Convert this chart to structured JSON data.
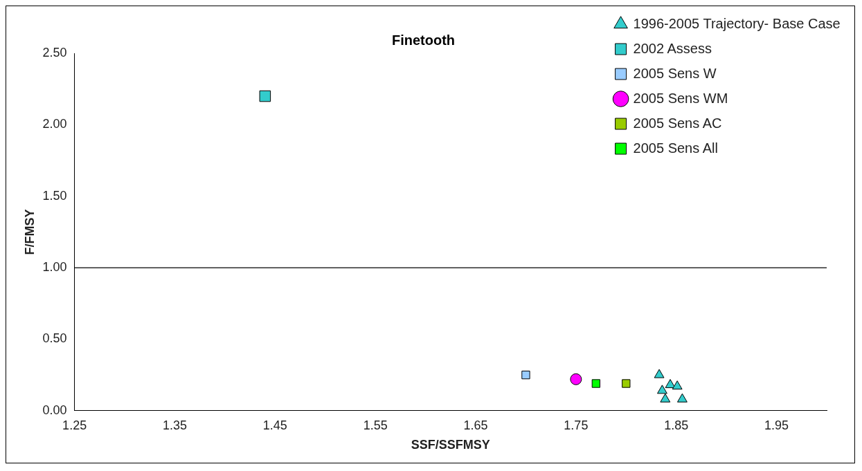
{
  "chart_data": {
    "type": "scatter",
    "title": "Finetooth",
    "xlabel": "SSF/SSFMSY",
    "ylabel": "F/FMSY",
    "xlim": [
      1.25,
      2.0
    ],
    "xticks": [
      1.25,
      1.35,
      1.45,
      1.55,
      1.65,
      1.75,
      1.85,
      1.95
    ],
    "ylim": [
      0,
      2.5
    ],
    "yticks": [
      {
        "value": 0,
        "label": "0.00"
      },
      {
        "value": 0.5,
        "label": "0.50"
      },
      {
        "value": 1,
        "label": "1.00"
      },
      {
        "value": 1.5,
        "label": "1.50"
      },
      {
        "value": 2,
        "label": "2.00"
      },
      {
        "value": 2.5,
        "label": "2.50"
      }
    ],
    "grid": false,
    "legend": "top right",
    "ref_lines": [
      {
        "axis": "y",
        "value": 1,
        "color": "#000000"
      }
    ],
    "series": [
      {
        "name": "1996-2005 Trajectory- Base Case",
        "color": "#33cccc",
        "marker": "triangle",
        "x": [
          1.833,
          1.836,
          1.839,
          1.844,
          1.848,
          1.851,
          1.856
        ],
        "values": [
          0.25,
          0.14,
          0.08,
          0.18,
          null,
          0.17,
          0.08
        ]
      },
      {
        "name": "2002 Assess",
        "color": "#33cccc",
        "marker": "square",
        "x": [
          1.44
        ],
        "values": [
          2.2
        ]
      },
      {
        "name": "2005 Sens W",
        "color": "#99ccff",
        "marker": "square",
        "x": [
          1.7
        ],
        "values": [
          0.25
        ]
      },
      {
        "name": "2005 Sens WM",
        "color": "#ff00ff",
        "marker": "circle",
        "x": [
          1.75
        ],
        "values": [
          0.22
        ]
      },
      {
        "name": "2005 Sens AC",
        "color": "#99cc00",
        "marker": "square",
        "x": [
          1.8
        ],
        "values": [
          0.19
        ]
      },
      {
        "name": "2005 Sens All",
        "color": "#00ff00",
        "marker": "square",
        "x": [
          1.77
        ],
        "values": [
          0.19
        ]
      }
    ]
  }
}
